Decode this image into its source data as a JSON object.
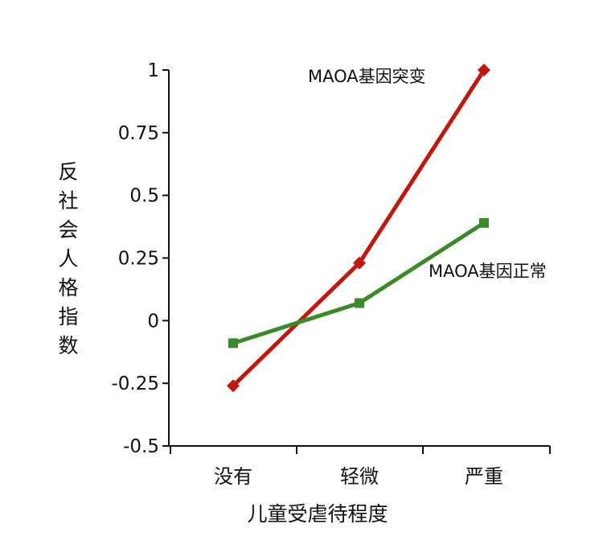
{
  "chart_data": {
    "type": "line",
    "title": "",
    "xlabel": "儿童受虐待程度",
    "ylabel": "反社会人格指数",
    "categories": [
      "没有",
      "轻微",
      "严重"
    ],
    "ylim": [
      -0.5,
      1
    ],
    "yticks": [
      "1",
      "0.75",
      "0.5",
      "0.25",
      "0",
      "-0.25",
      "-0.5"
    ],
    "ytick_values": [
      1,
      0.75,
      0.5,
      0.25,
      0,
      -0.25,
      -0.5
    ],
    "grid": false,
    "series": [
      {
        "name": "MAOA基因突变",
        "values": [
          -0.26,
          0.23,
          1.0
        ],
        "color": "#c0180e",
        "marker": "diamond"
      },
      {
        "name": "MAOA基因正常",
        "values": [
          -0.09,
          0.07,
          0.39
        ],
        "color": "#3a8a2a",
        "marker": "square"
      }
    ]
  }
}
